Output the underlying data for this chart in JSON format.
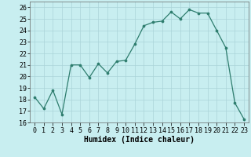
{
  "x": [
    0,
    1,
    2,
    3,
    4,
    5,
    6,
    7,
    8,
    9,
    10,
    11,
    12,
    13,
    14,
    15,
    16,
    17,
    18,
    19,
    20,
    21,
    22,
    23
  ],
  "y": [
    18.2,
    17.2,
    18.8,
    16.7,
    21.0,
    21.0,
    19.9,
    21.1,
    20.3,
    21.3,
    21.4,
    22.8,
    24.4,
    24.7,
    24.8,
    25.6,
    25.0,
    25.8,
    25.5,
    25.5,
    24.0,
    22.5,
    17.7,
    16.3
  ],
  "line_color": "#2e7d6e",
  "marker_color": "#2e7d6e",
  "bg_color": "#c8eef0",
  "grid_color": "#aad4d8",
  "xlabel": "Humidex (Indice chaleur)",
  "ylim": [
    16,
    26.5
  ],
  "xlim": [
    -0.5,
    23.5
  ],
  "yticks": [
    16,
    17,
    18,
    19,
    20,
    21,
    22,
    23,
    24,
    25,
    26
  ],
  "xticks": [
    0,
    1,
    2,
    3,
    4,
    5,
    6,
    7,
    8,
    9,
    10,
    11,
    12,
    13,
    14,
    15,
    16,
    17,
    18,
    19,
    20,
    21,
    22,
    23
  ],
  "tick_fontsize": 6,
  "xlabel_fontsize": 7
}
